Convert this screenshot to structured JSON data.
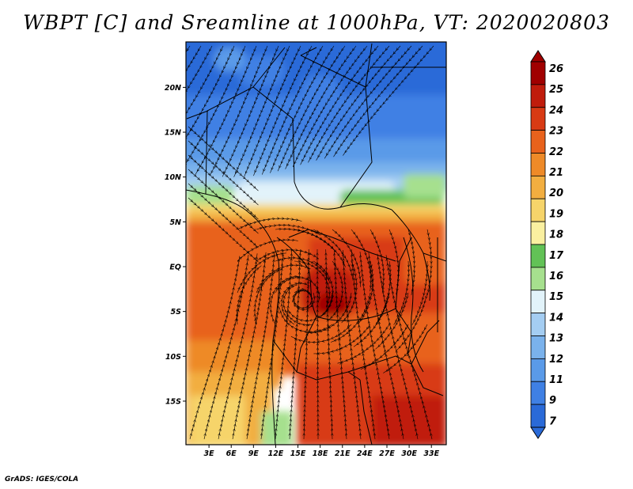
{
  "title": "WBPT [C] and Sreamline at 1000hPa, VT: 2020020803",
  "credit": "GrADS: IGES/COLA",
  "map": {
    "lat_ticks": [
      "20N",
      "15N",
      "10N",
      "5N",
      "EQ",
      "5S",
      "10S",
      "15S"
    ],
    "lon_ticks": [
      "3E",
      "6E",
      "9E",
      "12E",
      "15E",
      "18E",
      "21E",
      "24E",
      "27E",
      "30E",
      "33E"
    ],
    "lat_range": [
      -20,
      24
    ],
    "lon_range": [
      0,
      35
    ],
    "contour_fill_colors": [
      "#2a6ad8",
      "#3f80e4",
      "#5a9ae8",
      "#7ab2ec",
      "#a4cdf2",
      "#e2f3fa",
      "#a6e08e",
      "#62c256",
      "#faf0a0",
      "#f6d46a",
      "#f2ae40",
      "#ee8a28",
      "#e8621c",
      "#d83a14",
      "#c01c0c",
      "#a00000"
    ],
    "streamline_color": "#000000",
    "border_color": "#000000"
  },
  "colorbar": {
    "labels": [
      "26",
      "25",
      "24",
      "23",
      "22",
      "21",
      "20",
      "19",
      "18",
      "17",
      "16",
      "15",
      "14",
      "13",
      "12",
      "11",
      "9",
      "7"
    ],
    "colors": [
      "#a00000",
      "#c01c0c",
      "#d83a14",
      "#e8621c",
      "#ee8a28",
      "#f2ae40",
      "#f6d46a",
      "#faf0a0",
      "#62c256",
      "#a6e08e",
      "#e2f3fa",
      "#a4cdf2",
      "#7ab2ec",
      "#5a9ae8",
      "#3f80e4",
      "#2a6ad8"
    ]
  }
}
